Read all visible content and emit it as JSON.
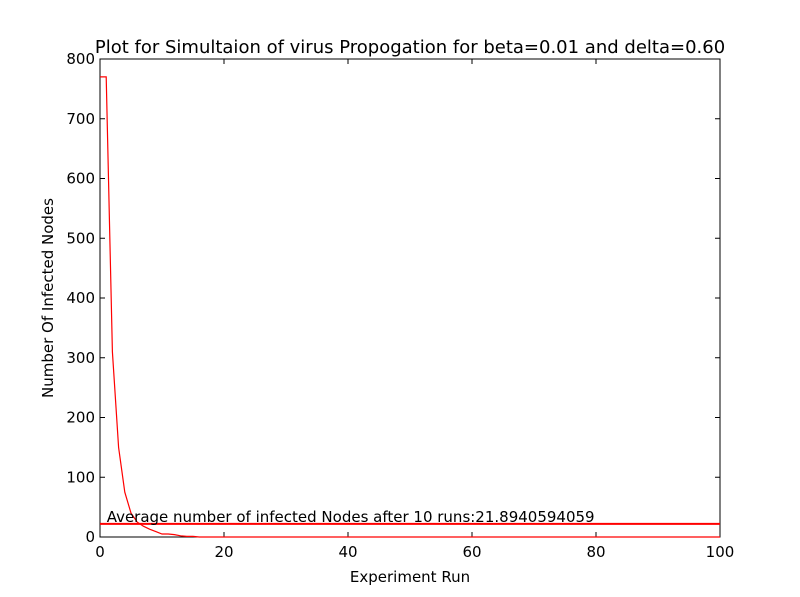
{
  "chart_data": {
    "type": "line",
    "title": "Plot for Simultaion of virus Propogation for beta=0.01 and delta=0.60",
    "xlabel": "Experiment Run",
    "ylabel": "Number Of Infected Nodes",
    "xlim": [
      0,
      100
    ],
    "ylim": [
      0,
      800
    ],
    "xticks": [
      0,
      20,
      40,
      60,
      80,
      100
    ],
    "yticks": [
      0,
      100,
      200,
      300,
      400,
      500,
      600,
      700,
      800
    ],
    "grid": false,
    "series": [
      {
        "color": "#ff0000",
        "x": [
          0,
          1,
          2,
          3,
          4,
          5,
          6,
          7,
          8,
          9,
          10,
          11,
          12,
          13,
          14,
          15,
          16,
          17,
          18,
          19,
          20,
          100
        ],
        "y": [
          770,
          770,
          310,
          150,
          75,
          40,
          25,
          18,
          13,
          9,
          5,
          5,
          4,
          2,
          1,
          1,
          0,
          0,
          0,
          0,
          0,
          0
        ]
      }
    ],
    "reference_line": {
      "color": "#ff0000",
      "y": 21.8940594059
    },
    "annotation": {
      "text": "Average number of infected Nodes after 10 runs:21.8940594059",
      "x": 1,
      "y": 21.8940594059
    }
  }
}
